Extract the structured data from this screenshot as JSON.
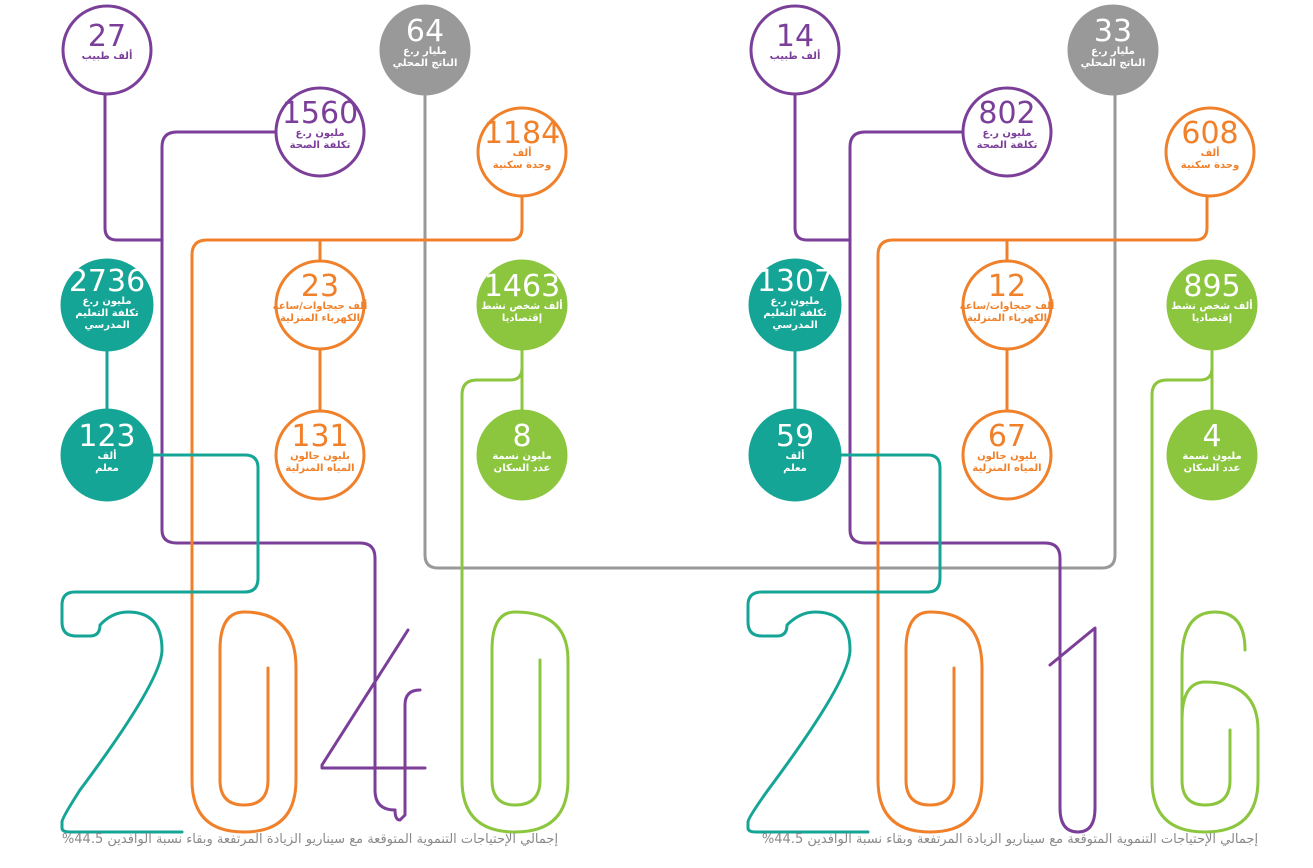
{
  "colors": {
    "purple": "#7b3f99",
    "gray": "#999999",
    "orange": "#f0812a",
    "teal": "#15a596",
    "green": "#8cc63f"
  },
  "panels": [
    {
      "year": "2040",
      "caption": "إجمالي الإحتياجات التنموية المتوقعة مع سيناريو الزيادة المرتفعة وبقاء نسبة الوافدين 44.5%",
      "nodes": [
        {
          "id": "doctors",
          "value": "27",
          "lines": [
            "ألف طبيب"
          ]
        },
        {
          "id": "gdp",
          "value": "64",
          "lines": [
            "مليار ر.ع",
            "الناتج المحلي"
          ]
        },
        {
          "id": "health",
          "value": "1560",
          "lines": [
            "مليون ر.ع",
            "تكلفة الصحة"
          ]
        },
        {
          "id": "housing",
          "value": "1184",
          "lines": [
            "ألف",
            "وحدة سكنية"
          ]
        },
        {
          "id": "education",
          "value": "2736",
          "lines": [
            "مليون ر.ع",
            "تكلفة التعليم",
            "المدرسي"
          ]
        },
        {
          "id": "electricity",
          "value": "23",
          "lines": [
            "ألف جيجاوات/ساعة",
            "الكهرباء المنزلية"
          ]
        },
        {
          "id": "workforce",
          "value": "1463",
          "lines": [
            "ألف شخص نشط",
            "إقتصاديا"
          ]
        },
        {
          "id": "teachers",
          "value": "123",
          "lines": [
            "ألف",
            "معلم"
          ]
        },
        {
          "id": "water",
          "value": "131",
          "lines": [
            "بليون جالون",
            "المياه المنزلية"
          ]
        },
        {
          "id": "population",
          "value": "8",
          "lines": [
            "مليون نسمة",
            "عدد السكان"
          ]
        }
      ]
    },
    {
      "year": "2016",
      "caption": "إجمالي الإحتياجات التنموية المتوقعة مع سيناريو الزيادة المرتفعة وبقاء نسبة الوافدين 44.5%",
      "nodes": [
        {
          "id": "doctors",
          "value": "14",
          "lines": [
            "ألف طبيب"
          ]
        },
        {
          "id": "gdp",
          "value": "33",
          "lines": [
            "مليار ر.ع",
            "الناتج المحلي"
          ]
        },
        {
          "id": "health",
          "value": "802",
          "lines": [
            "مليون ر.ع",
            "تكلفة الصحة"
          ]
        },
        {
          "id": "housing",
          "value": "608",
          "lines": [
            "ألف",
            "وحدة سكنية"
          ]
        },
        {
          "id": "education",
          "value": "1307",
          "lines": [
            "مليون ر.ع",
            "تكلفة التعليم",
            "المدرسي"
          ]
        },
        {
          "id": "electricity",
          "value": "12",
          "lines": [
            "ألف جيجاوات/ساعة",
            "الكهرباء المنزلية"
          ]
        },
        {
          "id": "workforce",
          "value": "895",
          "lines": [
            "ألف شخص نشط",
            "إقتصاديا"
          ]
        },
        {
          "id": "teachers",
          "value": "59",
          "lines": [
            "ألف",
            "معلم"
          ]
        },
        {
          "id": "water",
          "value": "67",
          "lines": [
            "بليون جالون",
            "المياه المنزلية"
          ]
        },
        {
          "id": "population",
          "value": "4",
          "lines": [
            "مليون نسمة",
            "عدد السكان"
          ]
        }
      ]
    }
  ]
}
